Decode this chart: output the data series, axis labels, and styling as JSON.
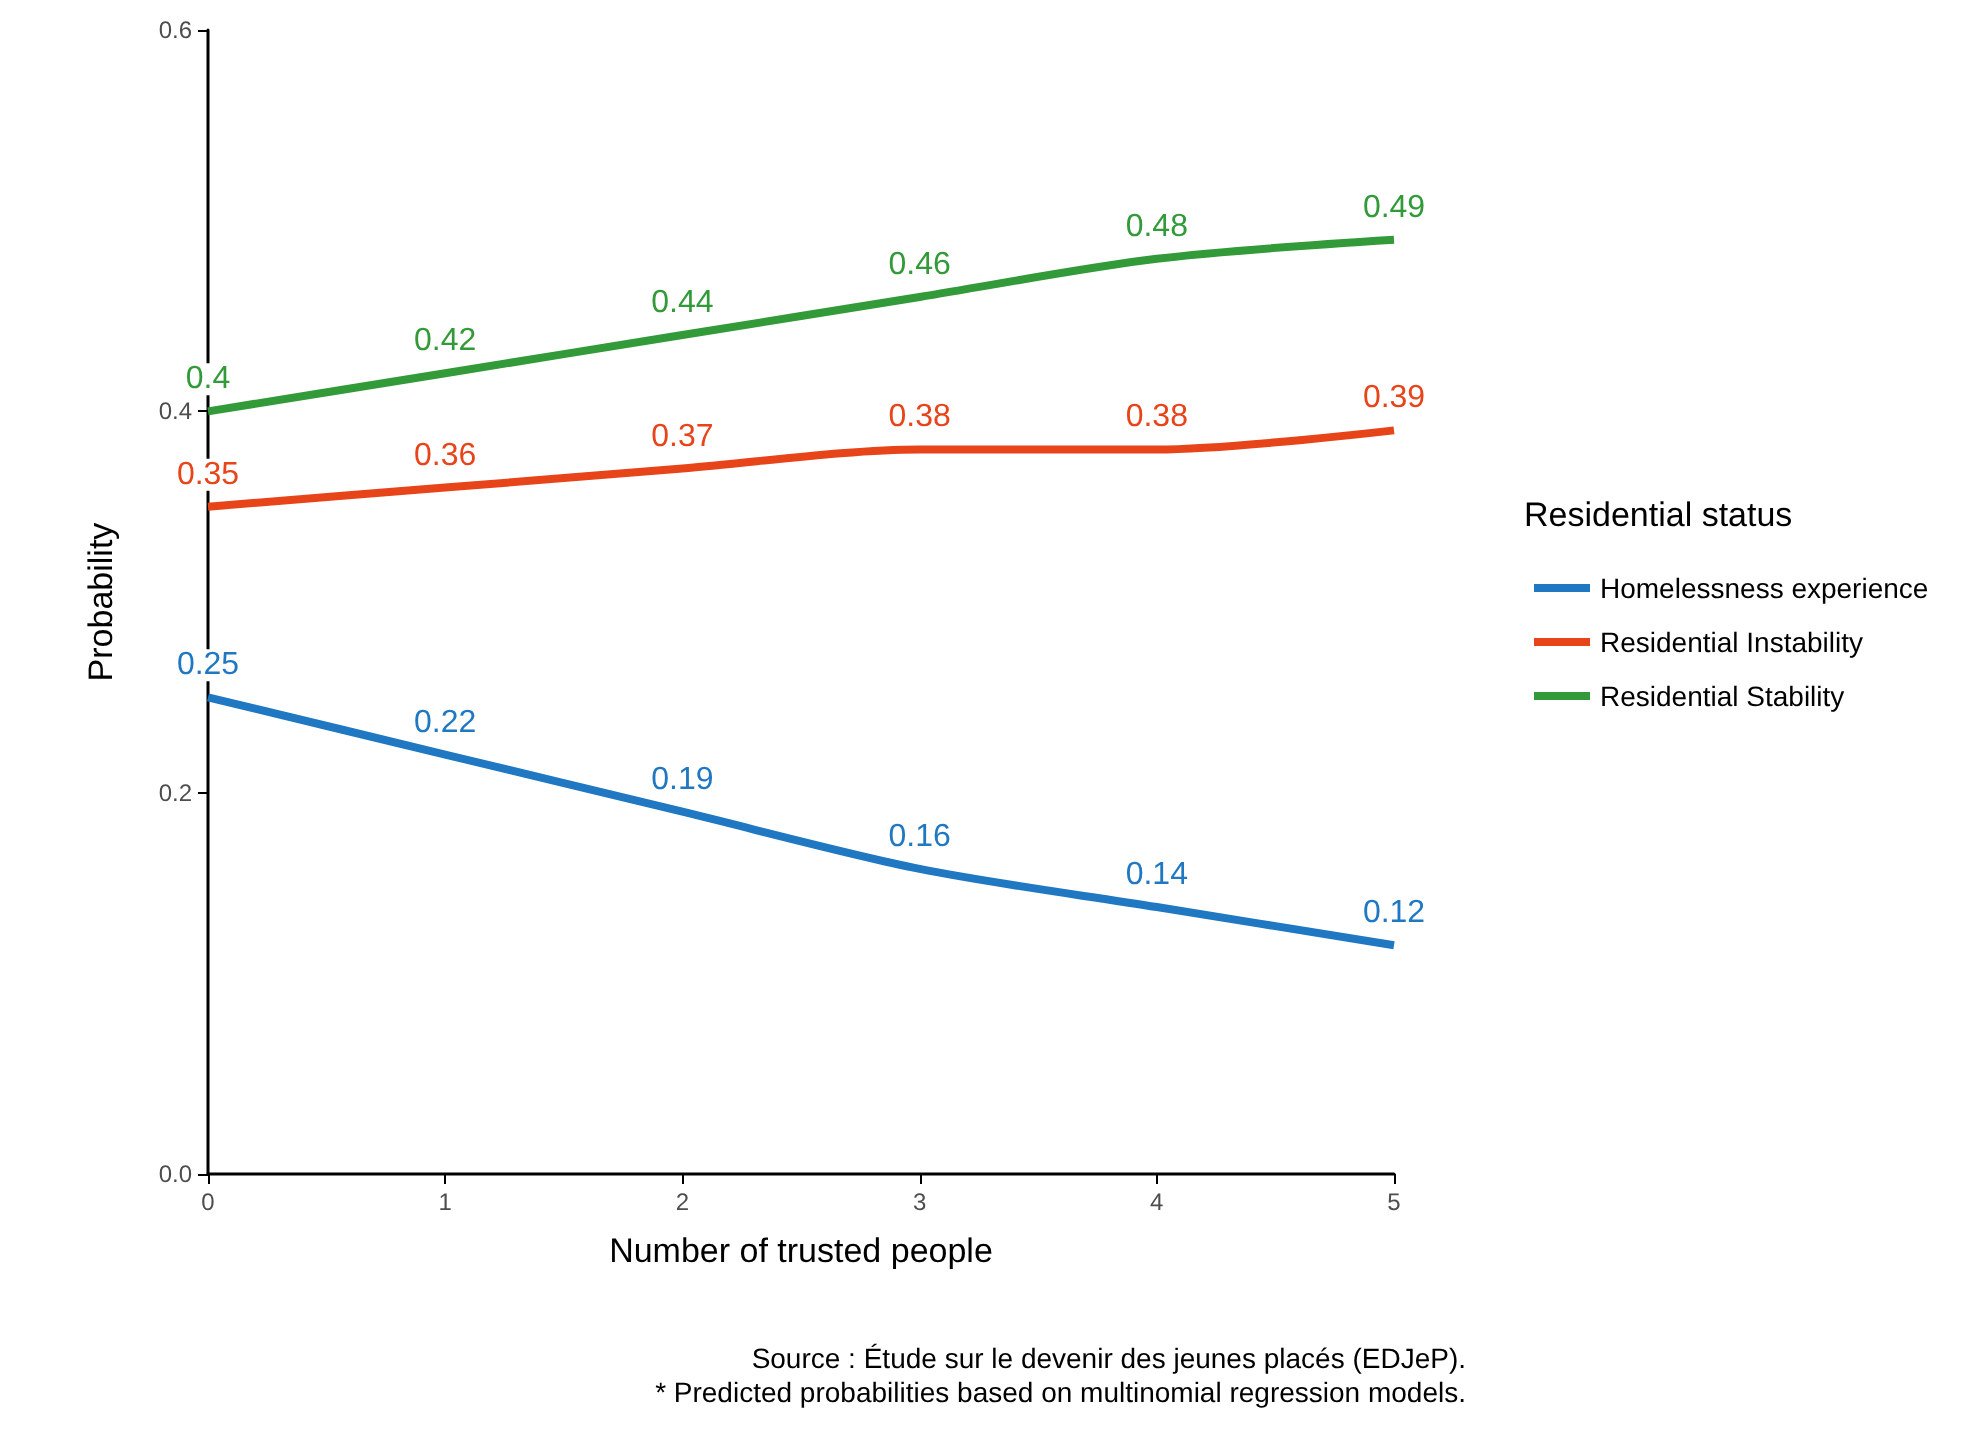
{
  "chart_data": {
    "type": "line",
    "xlabel": "Number of trusted people",
    "ylabel": "Probability",
    "legend_title": "Residential status",
    "x": [
      0,
      1,
      2,
      3,
      4,
      5
    ],
    "series": [
      {
        "name": "Homelessness experience",
        "color": "#1f78c1",
        "values": [
          0.25,
          0.22,
          0.19,
          0.16,
          0.14,
          0.12
        ]
      },
      {
        "name": "Residential Instability",
        "color": "#e8441a",
        "values": [
          0.35,
          0.36,
          0.37,
          0.38,
          0.38,
          0.39
        ]
      },
      {
        "name": "Residential Stability",
        "color": "#329a38",
        "values": [
          0.4,
          0.42,
          0.44,
          0.46,
          0.48,
          0.49
        ]
      }
    ],
    "xlim": [
      0,
      5
    ],
    "xticks": [
      0,
      1,
      2,
      3,
      4,
      5
    ],
    "ylim": [
      0,
      0.6
    ],
    "yticks": [
      {
        "value": 0,
        "label": "0.0"
      },
      {
        "value": 0.2,
        "label": "0.2"
      },
      {
        "value": 0.4,
        "label": "0.4"
      },
      {
        "value": 0.6,
        "label": "0.6"
      }
    ],
    "grid": false,
    "legend": "right",
    "marker": "none",
    "line_style": "solid",
    "data_labels": true,
    "annotations": [
      "Source : Étude sur le devenir des jeunes placés (EDJeP).",
      "* Predicted probabilities based on multinomial regression models."
    ]
  }
}
